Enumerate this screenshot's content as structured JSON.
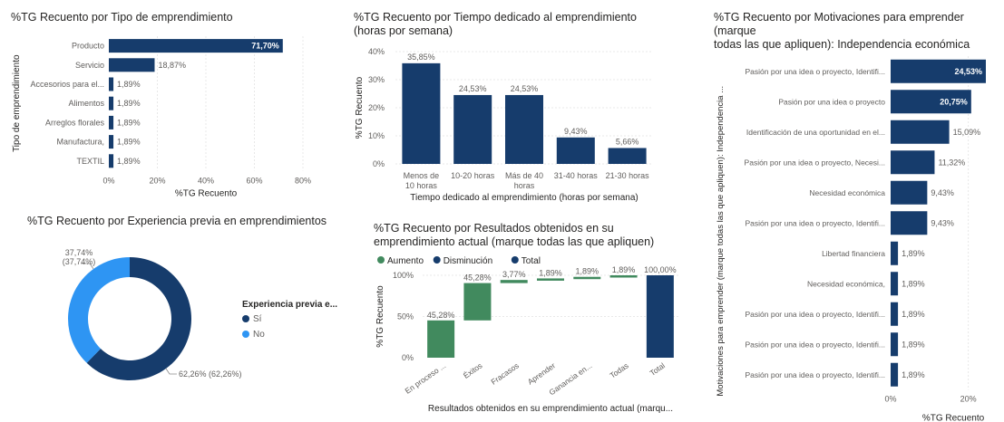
{
  "colors": {
    "navy": "#163C6C",
    "green": "#418A5E",
    "light_blue": "#2E95F3",
    "grid": "#E8E8E8",
    "text": "#605E5C",
    "title": "#252423"
  },
  "chart_data": [
    {
      "id": "tipo",
      "type": "bar",
      "orientation": "horizontal",
      "title": "%TG Recuento por Tipo de emprendimiento",
      "xlabel": "%TG Recuento",
      "ylabel": "Tipo de emprendimiento",
      "categories": [
        "Producto",
        "Servicio",
        "Accesorios para el...",
        "Alimentos",
        "Arreglos florales",
        "Manufactura,",
        "TEXTIL"
      ],
      "values": [
        71.7,
        18.87,
        1.89,
        1.89,
        1.89,
        1.89,
        1.89
      ],
      "labels": [
        "71,70%",
        "18,87%",
        "1,89%",
        "1,89%",
        "1,89%",
        "1,89%",
        "1,89%"
      ],
      "xlim": [
        0,
        80
      ],
      "ticks": [
        "0%",
        "20%",
        "40%",
        "60%",
        "80%"
      ],
      "grid": true
    },
    {
      "id": "tiempo",
      "type": "bar",
      "orientation": "vertical",
      "title": "%TG Recuento por Tiempo dedicado al emprendimiento (horas por semana)",
      "title_lines": [
        "%TG Recuento por Tiempo dedicado al emprendimiento",
        "(horas por semana)"
      ],
      "xlabel": "Tiempo dedicado al emprendimiento (horas por semana)",
      "ylabel": "%TG Recuento",
      "categories": [
        [
          "Menos de",
          "10 horas"
        ],
        [
          "10-20 horas"
        ],
        [
          "Más de 40",
          "horas"
        ],
        [
          "31-40 horas"
        ],
        [
          "21-30 horas"
        ]
      ],
      "values": [
        35.85,
        24.53,
        24.53,
        9.43,
        5.66
      ],
      "labels": [
        "35,85%",
        "24,53%",
        "24,53%",
        "9,43%",
        "5,66%"
      ],
      "ylim": [
        0,
        40
      ],
      "ticks": [
        "0%",
        "10%",
        "20%",
        "30%",
        "40%"
      ],
      "grid": true
    },
    {
      "id": "motivaciones",
      "type": "bar",
      "orientation": "horizontal",
      "title": "%TG Recuento por Motivaciones para emprender (marque todas las que apliquen): Independencia económica",
      "title_lines": [
        "%TG Recuento por Motivaciones para emprender (marque",
        "todas las que apliquen): Independencia económica"
      ],
      "xlabel": "%TG Recuento",
      "ylabel": "Motivaciones para emprender (marque todas las que apliquen): Independencia ...",
      "categories": [
        "Pasión por una idea o proyecto, Identifi...",
        "Pasión por una idea o proyecto",
        "Identificación de una oportunidad en el...",
        "Pasión por una idea o proyecto, Necesi...",
        "Necesidad económica",
        "Pasión por una idea o proyecto, Identifi...",
        "Libertad financiera",
        "Necesidad económica,",
        "Pasión por una idea o proyecto, Identifi...",
        "Pasión por una idea o proyecto, Identifi...",
        "Pasión por una idea o proyecto, Identifi..."
      ],
      "values": [
        24.53,
        20.75,
        15.09,
        11.32,
        9.43,
        9.43,
        1.89,
        1.89,
        1.89,
        1.89,
        1.89
      ],
      "labels": [
        "24,53%",
        "20,75%",
        "15,09%",
        "11,32%",
        "9,43%",
        "9,43%",
        "1,89%",
        "1,89%",
        "1,89%",
        "1,89%",
        "1,89%"
      ],
      "xlim": [
        0,
        25
      ],
      "ticks": [
        "0%",
        "20%"
      ],
      "tick_values": [
        0,
        20
      ],
      "grid": true
    },
    {
      "id": "experiencia",
      "type": "pie",
      "donut": true,
      "title": "%TG Recuento por Experiencia previa en emprendimientos",
      "legend_title": "Experiencia previa e...",
      "legend_placement": "right",
      "slices": [
        {
          "name": "Sí",
          "value": 62.26,
          "label": "62,26% (62,26%)",
          "color": "#163C6C"
        },
        {
          "name": "No",
          "value": 37.74,
          "label_lines": [
            "37,74%",
            "(37,74%)"
          ],
          "color": "#2E95F3"
        }
      ]
    },
    {
      "id": "resultados",
      "type": "bar",
      "subtype": "waterfall",
      "title": "%TG Recuento por Resultados obtenidos en su emprendimiento actual (marque todas las que apliquen)",
      "title_lines": [
        "%TG Recuento por Resultados obtenidos en su",
        "emprendimiento actual (marque todas las que apliquen)"
      ],
      "xlabel": "Resultados obtenidos en su emprendimiento actual (marqu...",
      "ylabel": "%TG Recuento",
      "legend": [
        {
          "name": "Aumento",
          "color": "#418A5E"
        },
        {
          "name": "Disminución",
          "color": "#163C6C"
        },
        {
          "name": "Total",
          "color": "#163C6C"
        }
      ],
      "legend_placement": "top-left",
      "categories": [
        "En proceso ...",
        "Éxitos",
        "Fracasos",
        "Aprender",
        "Ganancia en...",
        "Todas",
        "Total"
      ],
      "values": [
        45.28,
        45.28,
        3.77,
        1.89,
        1.89,
        1.89,
        100.0
      ],
      "labels": [
        "45,28%",
        "45,28%",
        "3,77%",
        "1,89%",
        "1,89%",
        "1,89%",
        "100,00%"
      ],
      "kinds": [
        "Aumento",
        "Aumento",
        "Aumento",
        "Aumento",
        "Aumento",
        "Aumento",
        "Total"
      ],
      "ylim": [
        0,
        100
      ],
      "ticks": [
        "0%",
        "50%",
        "100%"
      ],
      "tick_values": [
        0,
        50,
        100
      ],
      "grid": true
    }
  ]
}
